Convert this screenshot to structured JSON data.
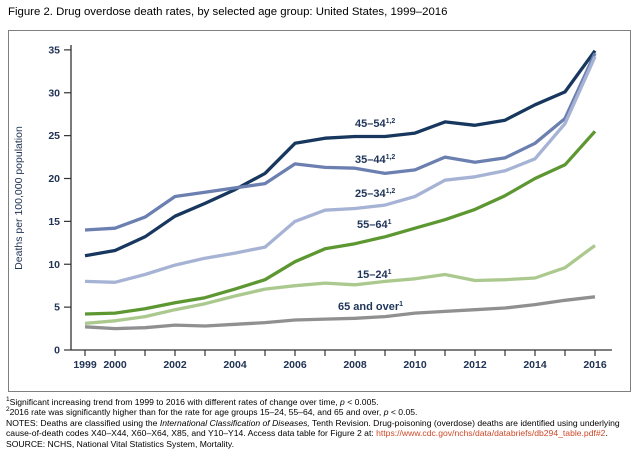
{
  "figure": {
    "title": "Figure 2. Drug overdose death rates, by selected age group: United States, 1999–2016"
  },
  "chart_data": {
    "type": "line",
    "title": "Drug overdose death rates, by selected age group: United States, 1999–2016",
    "xlabel": "",
    "ylabel": "Deaths per 100,000 population",
    "ylim": [
      0,
      35
    ],
    "ytick_interval": 5,
    "yticks": [
      0,
      5,
      10,
      15,
      20,
      25,
      30,
      35
    ],
    "grid": false,
    "legend_position": "inline-labels-on-lines",
    "x": [
      1999,
      2000,
      2001,
      2002,
      2003,
      2004,
      2005,
      2006,
      2007,
      2008,
      2009,
      2010,
      2011,
      2012,
      2013,
      2014,
      2015,
      2016
    ],
    "xtick_labels": [
      "1999",
      "2000",
      "2002",
      "2004",
      "2006",
      "2008",
      "2010",
      "2012",
      "2014",
      "2016"
    ],
    "series": [
      {
        "name": "45–54",
        "sup": "1,2",
        "color": "#17375e",
        "values": [
          11.0,
          11.6,
          13.2,
          15.6,
          17.1,
          18.7,
          20.6,
          24.1,
          24.7,
          24.9,
          24.9,
          25.3,
          26.6,
          26.2,
          26.8,
          28.6,
          30.1,
          34.9
        ]
      },
      {
        "name": "35–44",
        "sup": "1,2",
        "color": "#6b80b0",
        "values": [
          14.0,
          14.2,
          15.5,
          17.9,
          18.4,
          18.9,
          19.4,
          21.7,
          21.3,
          21.2,
          20.6,
          21.0,
          22.5,
          21.9,
          22.4,
          24.1,
          27.0,
          34.6
        ]
      },
      {
        "name": "25–34",
        "sup": "1,2",
        "color": "#a6b3d4",
        "values": [
          8.0,
          7.9,
          8.8,
          9.9,
          10.7,
          11.3,
          12.0,
          15.0,
          16.3,
          16.5,
          16.9,
          17.9,
          19.8,
          20.2,
          20.9,
          22.3,
          26.4,
          34.2
        ]
      },
      {
        "name": "55–64",
        "sup": "1",
        "color": "#5d9732",
        "values": [
          4.2,
          4.3,
          4.8,
          5.5,
          6.1,
          7.1,
          8.2,
          10.3,
          11.8,
          12.4,
          13.2,
          14.2,
          15.2,
          16.4,
          18.0,
          20.0,
          21.6,
          25.5
        ]
      },
      {
        "name": "15–24",
        "sup": "1",
        "color": "#abc98e",
        "values": [
          3.1,
          3.4,
          3.9,
          4.7,
          5.4,
          6.3,
          7.1,
          7.5,
          7.8,
          7.6,
          8.0,
          8.3,
          8.8,
          8.1,
          8.2,
          8.4,
          9.6,
          12.2
        ]
      },
      {
        "name": "65 and over",
        "sup": "1",
        "color": "#909090",
        "values": [
          2.7,
          2.5,
          2.6,
          2.9,
          2.8,
          3.0,
          3.2,
          3.5,
          3.6,
          3.7,
          3.9,
          4.3,
          4.5,
          4.7,
          4.9,
          5.3,
          5.8,
          6.2
        ]
      }
    ]
  },
  "footnotes": {
    "lines": [
      [
        {
          "t": "1",
          "sup": true
        },
        {
          "t": "Significant increasing trend from 1999 to 2016 with different rates of change over time, "
        },
        {
          "t": "p",
          "i": true
        },
        {
          "t": " < 0.005."
        }
      ],
      [
        {
          "t": "2",
          "sup": true
        },
        {
          "t": "2016 rate was significantly higher than for the rate for age groups 15–24, 55–64, and 65 and over, "
        },
        {
          "t": "p",
          "i": true
        },
        {
          "t": " < 0.05."
        }
      ],
      [
        {
          "t": "NOTES: Deaths are classified using the "
        },
        {
          "t": "International Classification of Diseases,",
          "i": true
        },
        {
          "t": " Tenth Revision. Drug-poisoning (overdose) deaths are identified using underlying cause-of-death codes X40–X44, X60–X64, X85, and Y10–Y14. Access data table for Figure 2 at: "
        },
        {
          "t": "https://www.cdc.gov/nchs/data/databriefs/db294_table.pdf#2",
          "link": true
        },
        {
          "t": "."
        }
      ],
      [
        {
          "t": "SOURCE: NCHS, National Vital Statistics System, Mortality."
        }
      ]
    ]
  },
  "colors": {
    "axis": "#333333",
    "tick_label": "#223455",
    "series_label": "#1f3459",
    "link": "#cf4727",
    "frame_border": "#7f7f7f"
  }
}
